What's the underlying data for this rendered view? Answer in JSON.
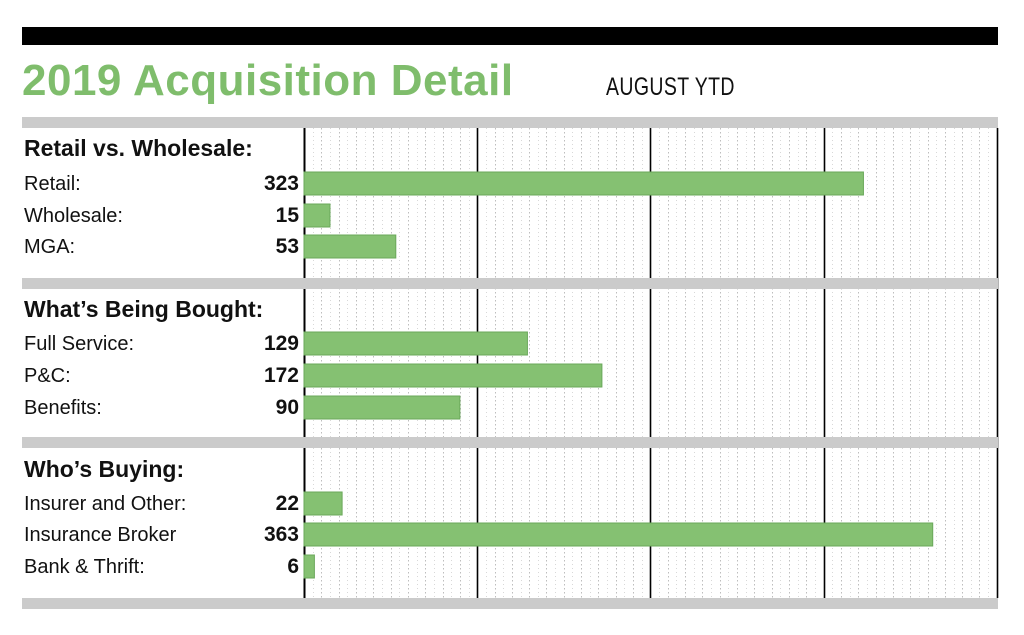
{
  "title": "2019 Acquisition Detail",
  "subtitle": "AUGUST YTD",
  "colors": {
    "bar": "#85c172",
    "bar_stroke": "#6aa85a",
    "title": "#7fbd6c",
    "separator": "#cbcbcb",
    "grid_major": "#000000",
    "grid_minor": "#bdbdbd"
  },
  "chart_data": {
    "type": "bar",
    "orientation": "horizontal",
    "xlim": [
      0,
      400
    ],
    "grid": true,
    "grid_major_step": 100,
    "grid_minor_step": 10,
    "groups": [
      {
        "heading": "Retail vs. Wholesale:",
        "rows": [
          {
            "label": "Retail:",
            "value": 323
          },
          {
            "label": "Wholesale:",
            "value": 15
          },
          {
            "label": "MGA:",
            "value": 53
          }
        ]
      },
      {
        "heading": "What’s Being Bought:",
        "rows": [
          {
            "label": "Full Service:",
            "value": 129
          },
          {
            "label": "P&C:",
            "value": 172
          },
          {
            "label": "Benefits:",
            "value": 90
          }
        ]
      },
      {
        "heading": "Who’s Buying:",
        "rows": [
          {
            "label": "Insurer and Other:",
            "value": 22
          },
          {
            "label": "Insurance Broker",
            "value": 363
          },
          {
            "label": "Bank & Thrift:",
            "value": 6
          }
        ]
      }
    ]
  }
}
